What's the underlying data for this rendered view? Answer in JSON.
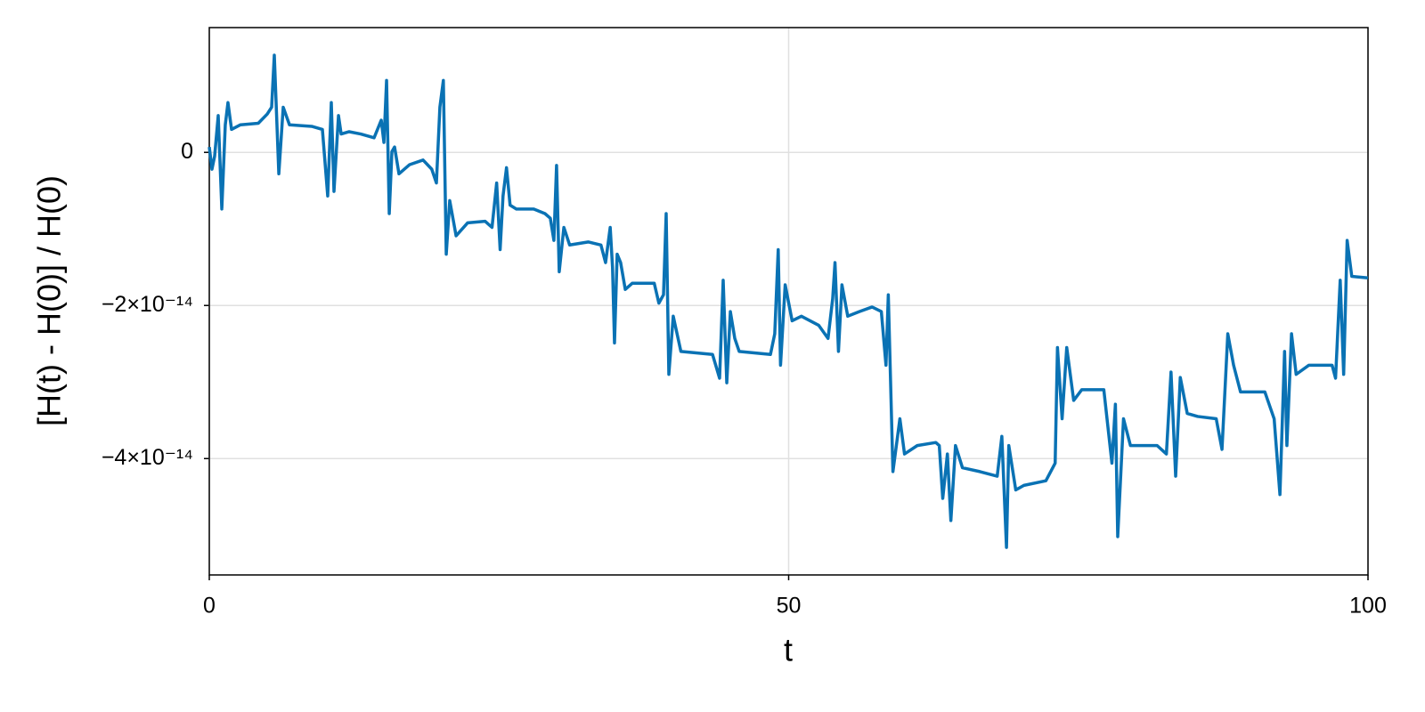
{
  "chart_data": {
    "type": "line",
    "xlabel": "t",
    "ylabel": "[H(t) - H(0)] / H(0)",
    "color": "#0a72b4",
    "grid": true,
    "xlim": [
      0,
      100
    ],
    "xticks": [
      0,
      50,
      100
    ],
    "ylim": [
      -5.52e-14,
      1.63e-14
    ],
    "yticks": [
      {
        "value": -4e-14,
        "label": "−4×10⁻¹⁴"
      },
      {
        "value": -2e-14,
        "label": "−2×10⁻¹⁴"
      },
      0
    ],
    "x": [
      0,
      0.23,
      0.46,
      0.77,
      1.08,
      1.38,
      1.61,
      1.92,
      2.69,
      4.23,
      5.0,
      5.38,
      5.61,
      6.0,
      6.38,
      6.92,
      8.84,
      9.76,
      10.22,
      10.53,
      10.76,
      11.15,
      11.38,
      12.07,
      13.07,
      14.22,
      14.84,
      15.07,
      15.3,
      15.53,
      15.76,
      15.99,
      16.37,
      17.29,
      18.45,
      19.2,
      19.6,
      19.9,
      20.2,
      20.45,
      20.75,
      21.3,
      22.3,
      23.8,
      24.4,
      24.8,
      25.1,
      25.35,
      25.65,
      25.96,
      26.5,
      28.0,
      28.97,
      29.43,
      29.74,
      29.97,
      30.2,
      30.6,
      31.1,
      32.7,
      33.8,
      34.2,
      34.6,
      34.8,
      34.97,
      35.2,
      35.5,
      35.9,
      36.5,
      38.4,
      38.8,
      39.2,
      39.43,
      39.66,
      40.04,
      40.7,
      43.43,
      44.04,
      44.35,
      44.66,
      44.97,
      45.35,
      45.73,
      48.43,
      48.8,
      49.1,
      49.3,
      49.7,
      50.3,
      51.1,
      52.6,
      53.4,
      53.8,
      54.0,
      54.3,
      54.6,
      55.1,
      56.1,
      57.2,
      58.0,
      58.4,
      58.6,
      59.0,
      59.6,
      60.0,
      61.1,
      62.7,
      63.0,
      63.3,
      63.7,
      64.0,
      64.4,
      65.0,
      66.5,
      68.0,
      68.4,
      68.8,
      69.0,
      69.6,
      70.3,
      72.2,
      73.0,
      73.2,
      73.6,
      74.0,
      74.6,
      75.3,
      77.2,
      77.9,
      78.2,
      78.4,
      78.9,
      79.5,
      81.8,
      82.6,
      83.0,
      83.4,
      83.8,
      84.4,
      85.3,
      86.9,
      87.4,
      87.9,
      88.4,
      89.0,
      91.1,
      91.9,
      92.4,
      92.8,
      93.0,
      93.4,
      93.8,
      94.9,
      96.9,
      97.2,
      97.6,
      97.9,
      98.2,
      98.6,
      100
    ],
    "values": [
      7e-16,
      -2.2e-15,
      -5e-16,
      4.8e-15,
      -7.4e-15,
      3.6e-15,
      6.5e-15,
      3e-15,
      3.6e-15,
      3.8e-15,
      5e-15,
      5.9e-15,
      1.27e-14,
      -2.8e-15,
      5.9e-15,
      3.6e-15,
      3.4e-15,
      3e-15,
      -5.7e-15,
      6.5e-15,
      -5.1e-15,
      4.8e-15,
      2.4e-15,
      2.7e-15,
      2.4e-15,
      1.9e-15,
      4.2e-15,
      1.3e-15,
      9.4e-15,
      -8e-15,
      1e-16,
      7e-16,
      -2.8e-15,
      -1.6e-15,
      -1e-15,
      -2.2e-15,
      -4e-15,
      5.9e-15,
      9.4e-15,
      -1.33e-14,
      -6.3e-15,
      -1.09e-14,
      -9.2e-15,
      -9e-15,
      -9.8e-15,
      -4e-15,
      -1.27e-14,
      -5.7e-15,
      -2e-15,
      -6.9e-15,
      -7.4e-15,
      -7.4e-15,
      -8e-15,
      -8.6e-15,
      -1.15e-14,
      -1.7e-15,
      -1.56e-14,
      -9.8e-15,
      -1.21e-14,
      -1.17e-14,
      -1.21e-14,
      -1.44e-14,
      -9.8e-15,
      -1.5e-14,
      -2.49e-14,
      -1.33e-14,
      -1.44e-14,
      -1.79e-14,
      -1.71e-14,
      -1.71e-14,
      -1.97e-14,
      -1.86e-14,
      -8e-15,
      -2.9e-14,
      -2.14e-14,
      -2.6e-14,
      -2.64e-14,
      -2.95e-14,
      -1.67e-14,
      -3.01e-14,
      -2.08e-14,
      -2.43e-14,
      -2.6e-14,
      -2.64e-14,
      -2.37e-14,
      -1.27e-14,
      -2.78e-14,
      -1.73e-14,
      -2.2e-14,
      -2.14e-14,
      -2.26e-14,
      -2.43e-14,
      -1.91e-14,
      -1.44e-14,
      -2.6e-14,
      -1.73e-14,
      -2.14e-14,
      -2.08e-14,
      -2.02e-14,
      -2.08e-14,
      -2.78e-14,
      -1.86e-14,
      -4.17e-14,
      -3.48e-14,
      -3.94e-14,
      -3.83e-14,
      -3.79e-14,
      -3.83e-14,
      -4.52e-14,
      -3.94e-14,
      -4.81e-14,
      -3.83e-14,
      -4.12e-14,
      -4.17e-14,
      -4.23e-14,
      -3.71e-14,
      -5.16e-14,
      -3.83e-14,
      -4.41e-14,
      -4.35e-14,
      -4.29e-14,
      -4.06e-14,
      -2.55e-14,
      -3.48e-14,
      -2.55e-14,
      -3.24e-14,
      -3.1e-14,
      -3.1e-14,
      -4.06e-14,
      -3.29e-14,
      -5.02e-14,
      -3.48e-14,
      -3.83e-14,
      -3.83e-14,
      -3.94e-14,
      -2.87e-14,
      -4.23e-14,
      -2.94e-14,
      -3.41e-14,
      -3.45e-14,
      -3.48e-14,
      -3.88e-14,
      -2.37e-14,
      -2.78e-14,
      -3.13e-14,
      -3.13e-14,
      -3.48e-14,
      -4.47e-14,
      -2.6e-14,
      -3.83e-14,
      -2.37e-14,
      -2.9e-14,
      -2.78e-14,
      -2.78e-14,
      -2.95e-14,
      -1.67e-14,
      -2.9e-14,
      -1.15e-14,
      -1.62e-14,
      -1.64e-14
    ]
  }
}
